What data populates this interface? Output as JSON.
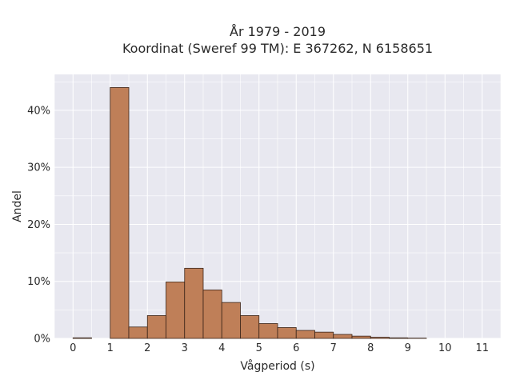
{
  "chart_data": {
    "type": "bar",
    "title_lines": [
      "År 1979 - 2019",
      "Koordinat (Sweref 99 TM): E 367262, N 6158651"
    ],
    "xlabel": "Vågperiod (s)",
    "ylabel": "Andel",
    "x_ticks": [
      "0",
      "1",
      "2",
      "3",
      "4",
      "5",
      "6",
      "7",
      "8",
      "9",
      "10",
      "11"
    ],
    "y_ticks": [
      "0%",
      "10%",
      "20%",
      "30%",
      "40%"
    ],
    "xlim": [
      -0.5,
      11.5
    ],
    "ylim": [
      0,
      46.3
    ],
    "bin_width": 0.5,
    "bins": [
      {
        "start": 0.0,
        "value": 0.1
      },
      {
        "start": 0.5,
        "value": 0.0
      },
      {
        "start": 1.0,
        "value": 44.0
      },
      {
        "start": 1.5,
        "value": 2.0
      },
      {
        "start": 2.0,
        "value": 4.0
      },
      {
        "start": 2.5,
        "value": 9.9
      },
      {
        "start": 3.0,
        "value": 12.3
      },
      {
        "start": 3.5,
        "value": 8.5
      },
      {
        "start": 4.0,
        "value": 6.3
      },
      {
        "start": 4.5,
        "value": 4.0
      },
      {
        "start": 5.0,
        "value": 2.6
      },
      {
        "start": 5.5,
        "value": 1.9
      },
      {
        "start": 6.0,
        "value": 1.4
      },
      {
        "start": 6.5,
        "value": 1.1
      },
      {
        "start": 7.0,
        "value": 0.7
      },
      {
        "start": 7.5,
        "value": 0.4
      },
      {
        "start": 8.0,
        "value": 0.2
      },
      {
        "start": 8.5,
        "value": 0.1
      },
      {
        "start": 9.0,
        "value": 0.05
      },
      {
        "start": 9.5,
        "value": 0.0
      },
      {
        "start": 10.0,
        "value": 0.0
      }
    ],
    "bar_color": "#bf7f58",
    "bar_edge_color": "#3a2418",
    "plot_background": "#e8e8f0",
    "grid": true
  }
}
